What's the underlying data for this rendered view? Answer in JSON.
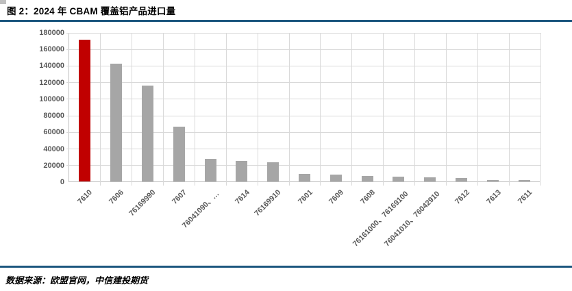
{
  "header": {
    "title": "图 2：2024 年 CBAM 覆盖铝产品进口量"
  },
  "footer": {
    "source": "数据来源：欧盟官网，中信建投期货"
  },
  "colors": {
    "highlight_bar": "#c00000",
    "bar": "#a6a6a6",
    "grid": "#d9d9d9",
    "axis_line": "#bfbfbf",
    "axis_text": "#595959",
    "rule": "#1b567e",
    "corner_marker": "#bfbfbf"
  },
  "chart_data": {
    "type": "bar",
    "title": "2024 年 CBAM 覆盖铝产品进口量",
    "categories": [
      "7610",
      "7606",
      "76169990",
      "7607",
      "76041090、…",
      "7614",
      "76169910",
      "7601",
      "7609",
      "7608",
      "76161000、76169100",
      "76041010、76042910",
      "7612",
      "7613",
      "7611"
    ],
    "values": [
      171000,
      142000,
      115500,
      66000,
      27000,
      25000,
      23500,
      9300,
      8500,
      6600,
      5500,
      4800,
      4200,
      1900,
      1700
    ],
    "highlight_index": 0,
    "xlabel": "",
    "ylabel": "",
    "ylim": [
      0,
      180000
    ],
    "ytick_step": 20000,
    "ytick_labels": [
      "0",
      "20000",
      "40000",
      "60000",
      "80000",
      "100000",
      "120000",
      "140000",
      "160000",
      "180000"
    ],
    "grid": true,
    "legend": false,
    "x_label_rotation_deg": 45
  }
}
